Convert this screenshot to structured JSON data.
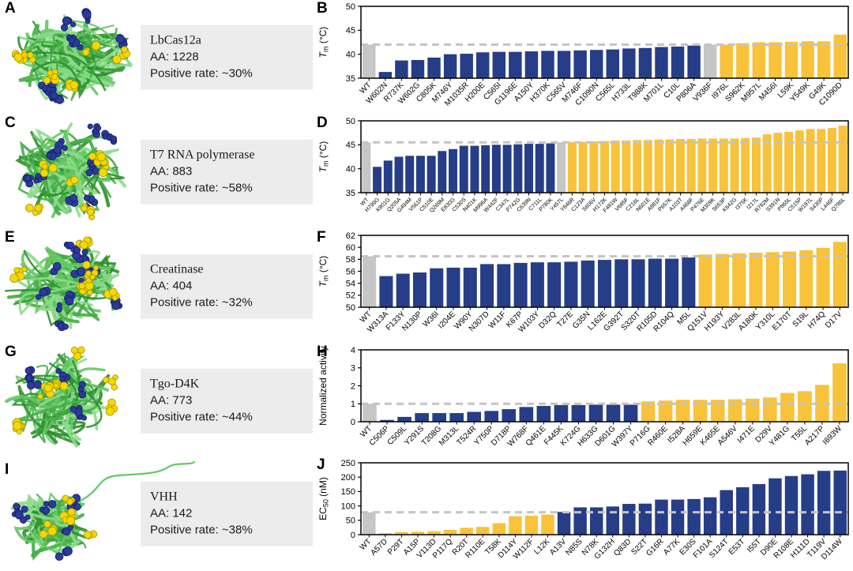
{
  "figure": {
    "panels_left": [
      {
        "letter": "A",
        "protein": "LbCas12a",
        "aa": "AA: 1228",
        "positive_rate": "Positive rate: ~30%"
      },
      {
        "letter": "C",
        "protein": "T7 RNA polymerase",
        "aa": "AA: 883",
        "positive_rate": "Positive rate: ~58%"
      },
      {
        "letter": "E",
        "protein": "Creatinase",
        "aa": "AA: 404",
        "positive_rate": "Positive rate: ~32%"
      },
      {
        "letter": "G",
        "protein": "Tgo-D4K",
        "aa": "AA: 773",
        "positive_rate": "Positive rate: ~44%"
      },
      {
        "letter": "I",
        "protein": "VHH",
        "aa": "AA: 142",
        "positive_rate": "Positive rate: ~38%"
      }
    ]
  },
  "colors": {
    "wt": "#c6c6c6",
    "negative": "#263d87",
    "positive": "#f8c33a",
    "dashed": "#c4c4c4",
    "info_box_bg": "#ececec",
    "ribbon_green": "#46ad46",
    "sphere_blue": "#2b3a9b",
    "sphere_yellow": "#f5d800"
  },
  "chart_data": [
    {
      "panel": "B",
      "type": "bar",
      "title": "",
      "xlabel": "",
      "ylabel": "*T*_m_ (°C)",
      "ylim": [
        35,
        50
      ],
      "yticks": [
        35,
        40,
        45,
        50
      ],
      "dashed_y": 42.0,
      "grid": false,
      "legend": "none",
      "label_size": 10,
      "categories": [
        "WT",
        "W602N",
        "R737K",
        "W602G",
        "C805K",
        "M746Y",
        "M1035R",
        "H200E",
        "C565I",
        "G1196E",
        "A150Y",
        "H370K",
        "C565V",
        "M746F",
        "C1090N",
        "C565L",
        "H733L",
        "T988K",
        "M701L",
        "C10L",
        "P806A",
        "V936F",
        "I976L",
        "S962K",
        "M957L",
        "M456I",
        "L59K",
        "Y549K",
        "G49K",
        "C1090D"
      ],
      "values": [
        42.0,
        36.3,
        38.7,
        38.8,
        39.3,
        40.0,
        40.1,
        40.4,
        40.5,
        40.5,
        40.6,
        40.7,
        40.7,
        40.8,
        40.9,
        41.0,
        41.2,
        41.3,
        41.5,
        41.6,
        41.8,
        42.0,
        42.0,
        42.3,
        42.5,
        42.5,
        42.6,
        42.7,
        42.7,
        44.1
      ],
      "bar_classes": [
        "wt",
        "neg",
        "neg",
        "neg",
        "neg",
        "neg",
        "neg",
        "neg",
        "neg",
        "neg",
        "neg",
        "neg",
        "neg",
        "neg",
        "neg",
        "neg",
        "neg",
        "neg",
        "neg",
        "neg",
        "neg",
        "wt",
        "pos",
        "pos",
        "pos",
        "pos",
        "pos",
        "pos",
        "pos",
        "pos"
      ]
    },
    {
      "panel": "D",
      "type": "bar",
      "title": "",
      "xlabel": "",
      "ylabel": "*T*_m_ (°C)",
      "ylim": [
        35,
        50
      ],
      "yticks": [
        35,
        40,
        45,
        50
      ],
      "dashed_y": 45.5,
      "grid": false,
      "legend": "none",
      "label_size": 7,
      "categories": [
        "WT",
        "H799G",
        "K801G",
        "Q205A",
        "G494M",
        "V561P",
        "C510E",
        "Q269M",
        "E830G",
        "C530S",
        "N401K",
        "M996A",
        "W442F",
        "C347L",
        "P742G",
        "C639N",
        "C711L",
        "P780K",
        "Y457L",
        "Y846R",
        "C123A",
        "S606V",
        "H172K",
        "F481W",
        "V685F",
        "C216L",
        "N601E",
        "A881F",
        "P657K",
        "A103T",
        "A468F",
        "P476E",
        "M309K",
        "S653P",
        "K642G",
        "I375K",
        "I217L",
        "R792M",
        "S391N",
        "P865L",
        "C515P",
        "W197L",
        "S430P",
        "L446F",
        "Q786L"
      ],
      "values": [
        45.5,
        40.4,
        41.7,
        42.5,
        42.7,
        42.7,
        42.7,
        43.7,
        44.1,
        44.8,
        44.8,
        44.9,
        45.0,
        45.0,
        45.1,
        45.2,
        45.2,
        45.3,
        45.5,
        45.6,
        45.6,
        45.7,
        45.8,
        45.9,
        45.9,
        46.0,
        46.0,
        46.1,
        46.1,
        46.2,
        46.2,
        46.3,
        46.3,
        46.3,
        46.3,
        46.4,
        46.5,
        47.2,
        47.5,
        47.7,
        48.0,
        48.3,
        48.3,
        48.5,
        49.0
      ],
      "bar_classes": [
        "wt",
        "neg",
        "neg",
        "neg",
        "neg",
        "neg",
        "neg",
        "neg",
        "neg",
        "neg",
        "neg",
        "neg",
        "neg",
        "neg",
        "neg",
        "neg",
        "neg",
        "neg",
        "wt",
        "pos",
        "pos",
        "pos",
        "pos",
        "pos",
        "pos",
        "pos",
        "pos",
        "pos",
        "pos",
        "pos",
        "pos",
        "pos",
        "pos",
        "pos",
        "pos",
        "pos",
        "pos",
        "pos",
        "pos",
        "pos",
        "pos",
        "pos",
        "pos",
        "pos",
        "pos"
      ]
    },
    {
      "panel": "F",
      "type": "bar",
      "title": "",
      "xlabel": "",
      "ylabel": "*T*_m_ (°C)",
      "ylim": [
        50,
        62
      ],
      "yticks": [
        50,
        52,
        54,
        56,
        58,
        60,
        62
      ],
      "dashed_y": 58.5,
      "grid": false,
      "legend": "none",
      "label_size": 10,
      "categories": [
        "WT",
        "W313A",
        "F133Y",
        "N130P",
        "W36I",
        "I204E",
        "W90Y",
        "N307D",
        "W11F",
        "K67P",
        "W103Y",
        "D32Q",
        "T27E",
        "G35N",
        "L162E",
        "G392T",
        "S320T",
        "R105D",
        "R104Q",
        "M5L",
        "Q151V",
        "H193Y",
        "V283L",
        "A180K",
        "Y310L",
        "E170T",
        "S19L",
        "H74Q",
        "D17V"
      ],
      "values": [
        58.5,
        55.2,
        55.6,
        55.8,
        56.5,
        56.6,
        56.6,
        57.2,
        57.2,
        57.4,
        57.5,
        57.5,
        57.6,
        57.8,
        57.9,
        58.0,
        58.0,
        58.1,
        58.1,
        58.3,
        58.8,
        58.9,
        59.0,
        59.1,
        59.2,
        59.3,
        59.5,
        59.9,
        60.9
      ],
      "bar_classes": [
        "wt",
        "neg",
        "neg",
        "neg",
        "neg",
        "neg",
        "neg",
        "neg",
        "neg",
        "neg",
        "neg",
        "neg",
        "neg",
        "neg",
        "neg",
        "neg",
        "neg",
        "neg",
        "neg",
        "neg",
        "pos",
        "pos",
        "pos",
        "pos",
        "pos",
        "pos",
        "pos",
        "pos",
        "pos"
      ]
    },
    {
      "panel": "H",
      "type": "bar",
      "title": "",
      "xlabel": "",
      "ylabel": "Normalized activity",
      "ylim": [
        0,
        4
      ],
      "yticks": [
        0,
        1,
        2,
        3,
        4
      ],
      "dashed_y": 1.0,
      "grid": false,
      "legend": "none",
      "label_size": 10,
      "categories": [
        "WT",
        "C506P",
        "C509L",
        "Y291S",
        "T208G",
        "M313L",
        "T524R",
        "Y750P",
        "D718P",
        "W768F",
        "Q461E",
        "F445K",
        "K724G",
        "H633G",
        "D601G",
        "W397Y",
        "P716G",
        "R460E",
        "I528A",
        "H659E",
        "K465E",
        "A546V",
        "I471E",
        "D29V",
        "Y481G",
        "T55L",
        "A217P",
        "I693W"
      ],
      "values": [
        1.0,
        0.1,
        0.27,
        0.48,
        0.48,
        0.48,
        0.55,
        0.6,
        0.7,
        0.82,
        0.88,
        0.93,
        0.93,
        0.95,
        0.95,
        0.95,
        1.13,
        1.18,
        1.22,
        1.22,
        1.22,
        1.25,
        1.28,
        1.35,
        1.6,
        1.7,
        2.05,
        3.25
      ],
      "bar_classes": [
        "wt",
        "neg",
        "neg",
        "neg",
        "neg",
        "neg",
        "neg",
        "neg",
        "neg",
        "neg",
        "neg",
        "neg",
        "neg",
        "neg",
        "neg",
        "neg",
        "pos",
        "pos",
        "pos",
        "pos",
        "pos",
        "pos",
        "pos",
        "pos",
        "pos",
        "pos",
        "pos",
        "pos"
      ]
    },
    {
      "panel": "J",
      "type": "bar",
      "title": "",
      "xlabel": "",
      "ylabel": "EC_50_ (nM)",
      "ylim": [
        0,
        250
      ],
      "yticks": [
        0,
        50,
        100,
        150,
        200,
        250
      ],
      "dashed_y": 78,
      "grid": false,
      "legend": "none",
      "label_size": 10,
      "categories": [
        "WT",
        "A57D",
        "P29T",
        "A15P",
        "V113D",
        "P117Q",
        "R20T",
        "R110E",
        "T58K",
        "D114Y",
        "W112F",
        "L12K",
        "A13V",
        "N85S",
        "N78K",
        "G132H",
        "Q83D",
        "S22T",
        "G16R",
        "A77K",
        "E30S",
        "F101A",
        "S124T",
        "E53T",
        "I55T",
        "D90E",
        "R108E",
        "H111D",
        "T119V",
        "D114W"
      ],
      "values": [
        78,
        5,
        9,
        10,
        12,
        17,
        24,
        27,
        40,
        64,
        66,
        70,
        79,
        95,
        95,
        98,
        107,
        108,
        122,
        122,
        124,
        130,
        155,
        165,
        176,
        196,
        204,
        210,
        222,
        223
      ],
      "bar_classes": [
        "wt",
        "pos",
        "pos",
        "pos",
        "pos",
        "pos",
        "pos",
        "pos",
        "pos",
        "pos",
        "pos",
        "pos",
        "neg",
        "neg",
        "neg",
        "neg",
        "neg",
        "neg",
        "neg",
        "neg",
        "neg",
        "neg",
        "neg",
        "neg",
        "neg",
        "neg",
        "neg",
        "neg",
        "neg",
        "neg"
      ]
    }
  ]
}
